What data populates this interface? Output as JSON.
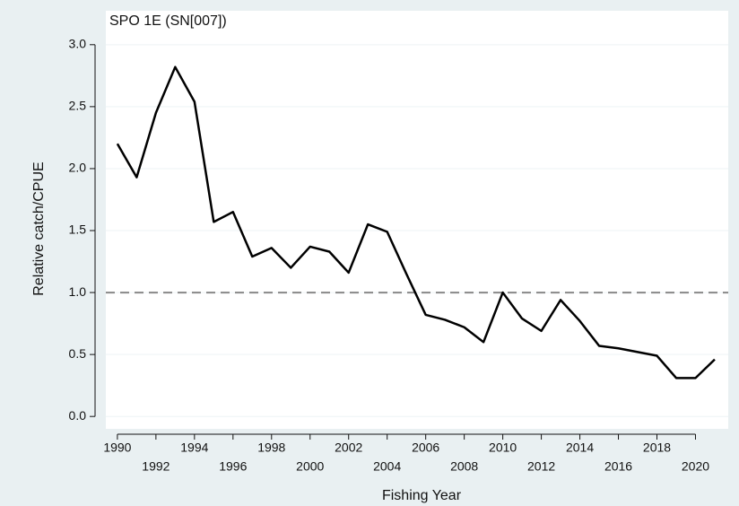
{
  "chart_data": {
    "type": "line",
    "title": "SPO 1E (SN[007])",
    "x_label": "Fishing Year",
    "y_label": "Relative catch/CPUE",
    "x": [
      1990,
      1991,
      1992,
      1993,
      1994,
      1995,
      1996,
      1997,
      1998,
      1999,
      2000,
      2001,
      2002,
      2003,
      2004,
      2005,
      2006,
      2007,
      2008,
      2009,
      2010,
      2011,
      2012,
      2013,
      2014,
      2015,
      2016,
      2017,
      2018,
      2019,
      2020,
      2021
    ],
    "values": [
      2.2,
      1.93,
      2.45,
      2.82,
      2.54,
      1.57,
      1.65,
      1.29,
      1.36,
      1.2,
      1.37,
      1.33,
      1.16,
      1.55,
      1.49,
      1.15,
      0.82,
      0.78,
      0.72,
      0.6,
      1.0,
      0.79,
      0.69,
      0.94,
      0.77,
      0.57,
      0.55,
      0.52,
      0.49,
      0.31,
      0.31,
      0.46
    ],
    "color": "#000000",
    "reference_line": 1,
    "xlim": [
      1989.4,
      2021.7
    ],
    "xticks": [
      1990,
      1992,
      1994,
      1996,
      1998,
      2000,
      2002,
      2004,
      2006,
      2008,
      2010,
      2012,
      2014,
      2016,
      2018,
      2020
    ],
    "ylim": [
      -0.1,
      3.1
    ],
    "yticks": [
      {
        "value": 0,
        "label": "0.0"
      },
      0.5,
      {
        "value": 1,
        "label": "1.0"
      },
      1.5,
      {
        "value": 2,
        "label": "2.0"
      },
      2.5,
      {
        "value": 3,
        "label": "3.0"
      }
    ],
    "grid": true
  }
}
